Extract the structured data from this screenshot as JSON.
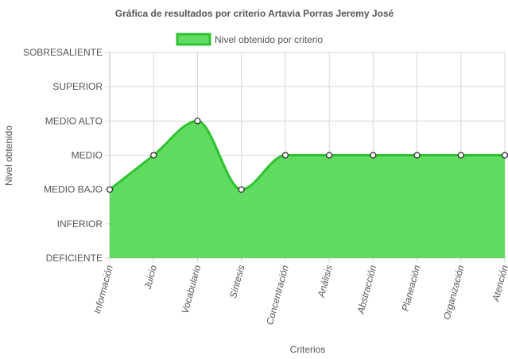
{
  "chart_data": {
    "type": "area",
    "title": "Gráfica de resultados por criterio Artavia Porras Jeremy José",
    "xlabel": "Criterios",
    "ylabel": "Nivel obtenido",
    "legend": "top",
    "grid": true,
    "y_levels": [
      "DEFICIENTE",
      "INFERIOR",
      "MEDIO BAJO",
      "MEDIO",
      "MEDIO ALTO",
      "SUPERIOR",
      "SOBRESALIENTE"
    ],
    "categories": [
      "Información",
      "Juicio",
      "Vocabulario",
      "Síntesis",
      "Concentración",
      "Análisis",
      "Abstracción",
      "Planeación",
      "Organización",
      "Atención"
    ],
    "series": [
      {
        "name": "Nivel obtenido por criterio",
        "values": [
          "MEDIO BAJO",
          "MEDIO",
          "MEDIO ALTO",
          "MEDIO BAJO",
          "MEDIO",
          "MEDIO",
          "MEDIO",
          "MEDIO",
          "MEDIO",
          "MEDIO"
        ],
        "color": "#2ec22e",
        "fill": "#4fd84f"
      }
    ]
  }
}
